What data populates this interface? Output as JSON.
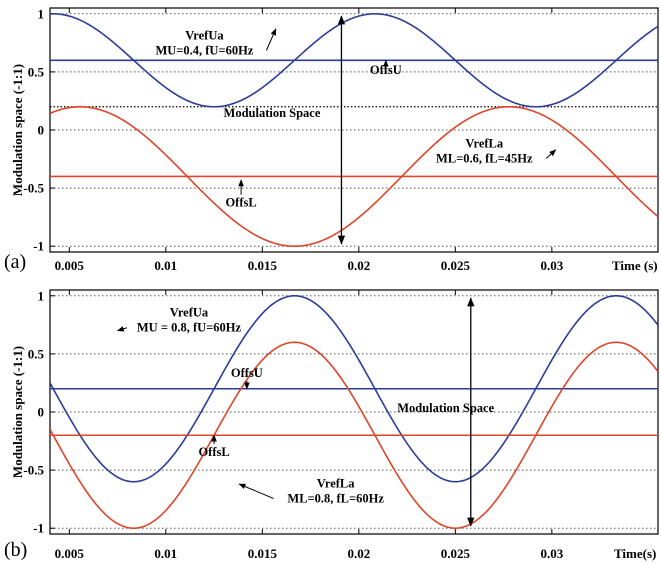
{
  "chart_data": [
    {
      "type": "line",
      "panel_label": "(a)",
      "xlabel": "Time (s)",
      "ylabel": "Modulation space (-1:1)",
      "xlim": [
        0.004,
        0.0355
      ],
      "ylim": [
        -1.05,
        1.05
      ],
      "x_ticks": [
        0.005,
        0.01,
        0.015,
        0.02,
        0.025,
        0.03
      ],
      "x_tick_labels": [
        "0.005",
        "0.01",
        "0.015",
        "0.02",
        "0.025",
        "0.03"
      ],
      "y_ticks": [
        1,
        0.5,
        0,
        -0.5,
        -1
      ],
      "y_tick_labels": [
        "1",
        "0.5",
        "0",
        "-0.5",
        "-1"
      ],
      "grid": "horizontal dotted",
      "color_upper": "#2b3d9a",
      "color_lower": "#e0442a",
      "series": [
        {
          "role": "VrefUa",
          "func": "sin",
          "freq": 60,
          "amp": 0.4,
          "offset": 0.6,
          "phase": 0
        },
        {
          "role": "OffsU",
          "func": "const",
          "value": 0.6
        },
        {
          "role": "VrefLa",
          "func": "sin",
          "freq": 45,
          "amp": 0.6,
          "offset": -0.4,
          "phase": 0
        },
        {
          "role": "OffsL",
          "func": "const",
          "value": -0.4
        }
      ],
      "reference_lines": [
        0.2
      ],
      "annotations": [
        {
          "id": "vrefua",
          "lines": [
            "VrefUa",
            "MU=0.4, fU=60Hz"
          ],
          "x": 0.012,
          "y": 0.78,
          "arrow_to": [
            0.0157,
            0.87
          ]
        },
        {
          "id": "offsu",
          "lines": [
            "OffsU"
          ],
          "x": 0.0214,
          "y": 0.48,
          "arrow_to": [
            0.0214,
            0.6
          ]
        },
        {
          "id": "modspace",
          "lines": [
            "Modulation Space"
          ],
          "x": 0.0155,
          "y": 0.11,
          "double_arrow": [
            0.0191,
            0.98,
            -0.98
          ]
        },
        {
          "id": "vrefla",
          "lines": [
            "VrefLa",
            "ML=0.6, fL=45Hz"
          ],
          "x": 0.0265,
          "y": -0.15,
          "arrow_to": [
            0.0302,
            -0.17
          ]
        },
        {
          "id": "offsl",
          "lines": [
            "OffsL"
          ],
          "x": 0.0139,
          "y": -0.66,
          "arrow_to": [
            0.0139,
            -0.43
          ]
        }
      ]
    },
    {
      "type": "line",
      "panel_label": "(b)",
      "xlabel": "Time(s)",
      "ylabel": "Modulation space (-1:1)",
      "xlim": [
        0.004,
        0.0355
      ],
      "ylim": [
        -1.05,
        1.05
      ],
      "x_ticks": [
        0.005,
        0.01,
        0.015,
        0.02,
        0.025,
        0.03
      ],
      "x_tick_labels": [
        "0.005",
        "0.01",
        "0.015",
        "0.02",
        "0.025",
        "0.03"
      ],
      "y_ticks": [
        1,
        0.5,
        0,
        -0.5,
        -1
      ],
      "y_tick_labels": [
        "1",
        "0.5",
        "0",
        "-0.5",
        "-1"
      ],
      "grid": "horizontal dotted",
      "color_upper": "#2b3d9a",
      "color_lower": "#e0442a",
      "series": [
        {
          "role": "VrefUa",
          "func": "cos",
          "freq": 60,
          "amp": 0.8,
          "offset": 0.2,
          "phase": 0
        },
        {
          "role": "OffsU",
          "func": "const",
          "value": 0.2
        },
        {
          "role": "VrefLa",
          "func": "cos",
          "freq": 60,
          "amp": 0.8,
          "offset": -0.2,
          "phase": 0
        },
        {
          "role": "OffsL",
          "func": "const",
          "value": -0.2
        }
      ],
      "reference_lines": [],
      "annotations": [
        {
          "id": "vrefua",
          "lines": [
            "VrefUa",
            "MU = 0.8,  fU=60Hz"
          ],
          "x": 0.0112,
          "y": 0.82,
          "arrow_to": [
            0.0075,
            0.7
          ]
        },
        {
          "id": "offsu",
          "lines": [
            "OffsU"
          ],
          "x": 0.0142,
          "y": 0.3,
          "arrow_to": [
            0.0142,
            0.2
          ]
        },
        {
          "id": "modspace",
          "lines": [
            "Modulation Space"
          ],
          "x": 0.0245,
          "y": 0.0,
          "double_arrow": [
            0.0258,
            0.98,
            -0.98
          ]
        },
        {
          "id": "offsl",
          "lines": [
            "OffsL"
          ],
          "x": 0.0125,
          "y": -0.38,
          "arrow_to": [
            0.0125,
            -0.2
          ]
        },
        {
          "id": "vrefla",
          "lines": [
            "VrefLa",
            "ML=0.8, fL=60Hz"
          ],
          "x": 0.0188,
          "y": -0.65,
          "arrow_to": [
            0.0138,
            -0.62
          ]
        }
      ]
    }
  ]
}
